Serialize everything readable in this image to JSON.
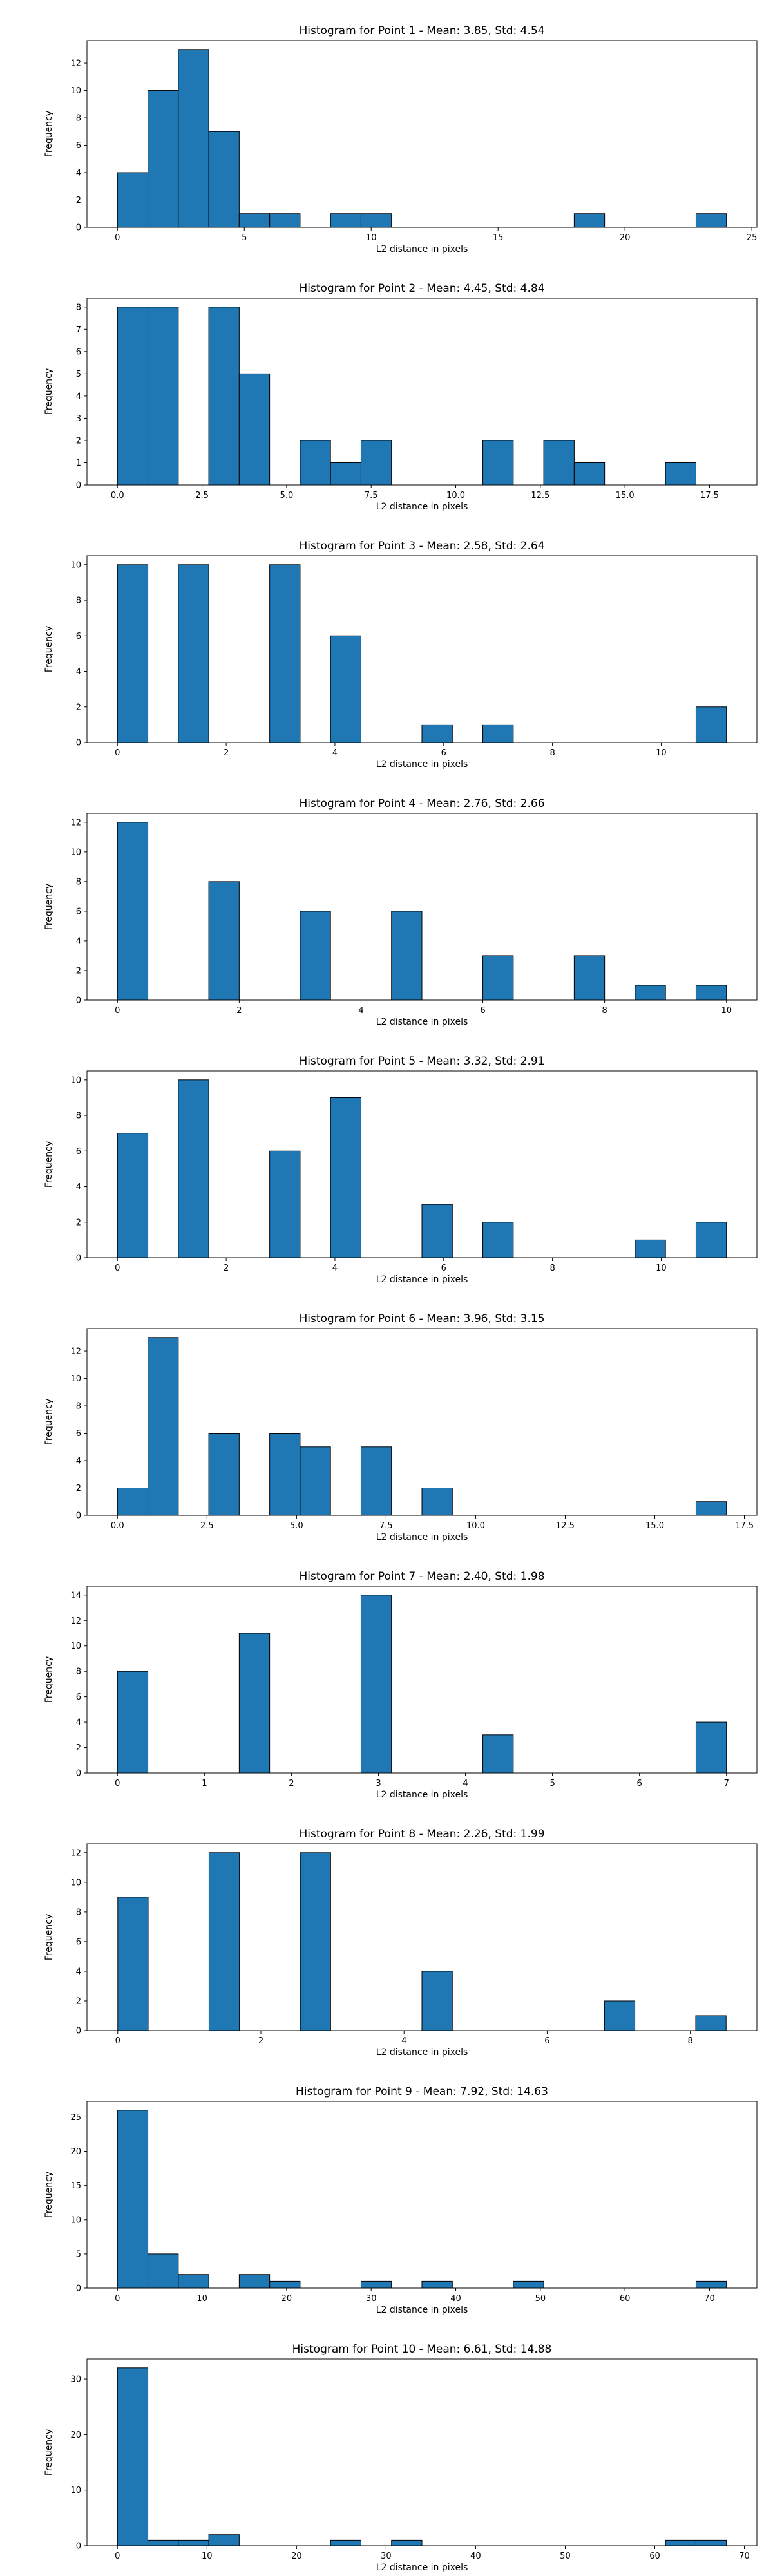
{
  "chart_data": [
    {
      "type": "bar",
      "title": "Histogram for Point 1 - Mean: 3.85, Std: 4.54",
      "xlabel": "L2 distance in pixels",
      "ylabel": "Frequency",
      "xlim": [
        -1.2,
        25.2
      ],
      "ylim": [
        0,
        13.65
      ],
      "xticks": [
        0,
        5,
        10,
        15,
        20,
        25
      ],
      "xtick_labels": [
        "0",
        "5",
        "10",
        "15",
        "20",
        "25"
      ],
      "yticks": [
        0,
        2,
        4,
        6,
        8,
        10,
        12
      ],
      "ytick_labels": [
        "0",
        "2",
        "4",
        "6",
        "8",
        "10",
        "12"
      ],
      "bin_edges": [
        0.0,
        1.2,
        2.4,
        3.6,
        4.8,
        6.0,
        7.2,
        8.4,
        9.6,
        10.8,
        12.0,
        13.2,
        14.4,
        15.6,
        16.8,
        18.0,
        19.2,
        20.4,
        21.6,
        22.8,
        24.0
      ],
      "values": [
        4,
        10,
        13,
        7,
        1,
        1,
        0,
        1,
        1,
        0,
        0,
        0,
        0,
        0,
        0,
        1,
        0,
        0,
        0,
        1
      ],
      "color": "#1f77b4"
    },
    {
      "type": "bar",
      "title": "Histogram for Point 2 - Mean: 4.45, Std: 4.84",
      "xlabel": "L2 distance in pixels",
      "ylabel": "Frequency",
      "xlim": [
        -0.9,
        18.9
      ],
      "ylim": [
        0,
        8.4
      ],
      "xticks": [
        0,
        2.5,
        5,
        7.5,
        10,
        12.5,
        15,
        17.5
      ],
      "xtick_labels": [
        "0.0",
        "2.5",
        "5.0",
        "7.5",
        "10.0",
        "12.5",
        "15.0",
        "17.5"
      ],
      "yticks": [
        0,
        1,
        2,
        3,
        4,
        5,
        6,
        7,
        8
      ],
      "ytick_labels": [
        "0",
        "1",
        "2",
        "3",
        "4",
        "5",
        "6",
        "7",
        "8"
      ],
      "bin_edges": [
        0.0,
        0.9,
        1.8,
        2.7,
        3.6,
        4.5,
        5.4,
        6.3,
        7.2,
        8.1,
        9.0,
        9.9,
        10.8,
        11.7,
        12.6,
        13.5,
        14.4,
        15.3,
        16.2,
        17.1,
        18.0
      ],
      "values": [
        8,
        8,
        0,
        8,
        5,
        0,
        2,
        1,
        2,
        0,
        0,
        0,
        2,
        0,
        2,
        1,
        0,
        0,
        1,
        0
      ],
      "color": "#1f77b4"
    },
    {
      "type": "bar",
      "title": "Histogram for Point 3 - Mean: 2.58, Std: 2.64",
      "xlabel": "L2 distance in pixels",
      "ylabel": "Frequency",
      "xlim": [
        -0.56,
        11.76
      ],
      "ylim": [
        0,
        10.5
      ],
      "xticks": [
        0,
        2,
        4,
        6,
        8,
        10
      ],
      "xtick_labels": [
        "0",
        "2",
        "4",
        "6",
        "8",
        "10"
      ],
      "yticks": [
        0,
        2,
        4,
        6,
        8,
        10
      ],
      "ytick_labels": [
        "0",
        "2",
        "4",
        "6",
        "8",
        "10"
      ],
      "bin_edges": [
        0.0,
        0.56,
        1.12,
        1.68,
        2.24,
        2.8,
        3.36,
        3.92,
        4.48,
        5.04,
        5.6,
        6.16,
        6.72,
        7.28,
        7.84,
        8.4,
        8.96,
        9.52,
        10.08,
        10.64,
        11.2
      ],
      "values": [
        10,
        0,
        10,
        0,
        0,
        10,
        0,
        6,
        0,
        0,
        1,
        0,
        1,
        0,
        0,
        0,
        0,
        0,
        0,
        2
      ],
      "color": "#1f77b4"
    },
    {
      "type": "bar",
      "title": "Histogram for Point 4 - Mean: 2.76, Std: 2.66",
      "xlabel": "L2 distance in pixels",
      "ylabel": "Frequency",
      "xlim": [
        -0.5,
        10.5
      ],
      "ylim": [
        0,
        12.6
      ],
      "xticks": [
        0,
        2,
        4,
        6,
        8,
        10
      ],
      "xtick_labels": [
        "0",
        "2",
        "4",
        "6",
        "8",
        "10"
      ],
      "yticks": [
        0,
        2,
        4,
        6,
        8,
        10,
        12
      ],
      "ytick_labels": [
        "0",
        "2",
        "4",
        "6",
        "8",
        "10",
        "12"
      ],
      "bin_edges": [
        0.0,
        0.5,
        1.0,
        1.5,
        2.0,
        2.5,
        3.0,
        3.5,
        4.0,
        4.5,
        5.0,
        5.5,
        6.0,
        6.5,
        7.0,
        7.5,
        8.0,
        8.5,
        9.0,
        9.5,
        10.0
      ],
      "values": [
        12,
        0,
        0,
        8,
        0,
        0,
        6,
        0,
        0,
        6,
        0,
        0,
        3,
        0,
        0,
        3,
        0,
        1,
        0,
        1
      ],
      "color": "#1f77b4"
    },
    {
      "type": "bar",
      "title": "Histogram for Point 5 - Mean: 3.32, Std: 2.91",
      "xlabel": "L2 distance in pixels",
      "ylabel": "Frequency",
      "xlim": [
        -0.56,
        11.76
      ],
      "ylim": [
        0,
        10.5
      ],
      "xticks": [
        0,
        2,
        4,
        6,
        8,
        10
      ],
      "xtick_labels": [
        "0",
        "2",
        "4",
        "6",
        "8",
        "10"
      ],
      "yticks": [
        0,
        2,
        4,
        6,
        8,
        10
      ],
      "ytick_labels": [
        "0",
        "2",
        "4",
        "6",
        "8",
        "10"
      ],
      "bin_edges": [
        0.0,
        0.56,
        1.12,
        1.68,
        2.24,
        2.8,
        3.36,
        3.92,
        4.48,
        5.04,
        5.6,
        6.16,
        6.72,
        7.28,
        7.84,
        8.4,
        8.96,
        9.52,
        10.08,
        10.64,
        11.2
      ],
      "values": [
        7,
        0,
        10,
        0,
        0,
        6,
        0,
        9,
        0,
        0,
        3,
        0,
        2,
        0,
        0,
        0,
        0,
        1,
        0,
        2
      ],
      "color": "#1f77b4"
    },
    {
      "type": "bar",
      "title": "Histogram for Point 6 - Mean: 3.96, Std: 3.15",
      "xlabel": "L2 distance in pixels",
      "ylabel": "Frequency",
      "xlim": [
        -0.85,
        17.85
      ],
      "ylim": [
        0,
        13.65
      ],
      "xticks": [
        0,
        2.5,
        5,
        7.5,
        10,
        12.5,
        15,
        17.5
      ],
      "xtick_labels": [
        "0.0",
        "2.5",
        "5.0",
        "7.5",
        "10.0",
        "12.5",
        "15.0",
        "17.5"
      ],
      "yticks": [
        0,
        2,
        4,
        6,
        8,
        10,
        12
      ],
      "ytick_labels": [
        "0",
        "2",
        "4",
        "6",
        "8",
        "10",
        "12"
      ],
      "bin_edges": [
        0.0,
        0.85,
        1.7,
        2.55,
        3.4,
        4.25,
        5.1,
        5.95,
        6.8,
        7.65,
        8.5,
        9.35,
        10.2,
        11.05,
        11.9,
        12.75,
        13.6,
        14.45,
        15.3,
        16.15,
        17.0
      ],
      "values": [
        2,
        13,
        0,
        6,
        0,
        6,
        5,
        0,
        5,
        0,
        2,
        0,
        0,
        0,
        0,
        0,
        0,
        0,
        0,
        1
      ],
      "color": "#1f77b4"
    },
    {
      "type": "bar",
      "title": "Histogram for Point 7 - Mean: 2.40, Std: 1.98",
      "xlabel": "L2 distance in pixels",
      "ylabel": "Frequency",
      "xlim": [
        -0.35,
        7.35
      ],
      "ylim": [
        0,
        14.7
      ],
      "xticks": [
        0,
        1,
        2,
        3,
        4,
        5,
        6,
        7
      ],
      "xtick_labels": [
        "0",
        "1",
        "2",
        "3",
        "4",
        "5",
        "6",
        "7"
      ],
      "yticks": [
        0,
        2,
        4,
        6,
        8,
        10,
        12,
        14
      ],
      "ytick_labels": [
        "0",
        "2",
        "4",
        "6",
        "8",
        "10",
        "12",
        "14"
      ],
      "bin_edges": [
        0.0,
        0.35,
        0.7,
        1.05,
        1.4,
        1.75,
        2.1,
        2.45,
        2.8,
        3.15,
        3.5,
        3.85,
        4.2,
        4.55,
        4.9,
        5.25,
        5.6,
        5.95,
        6.3,
        6.65,
        7.0
      ],
      "values": [
        8,
        0,
        0,
        0,
        11,
        0,
        0,
        0,
        14,
        0,
        0,
        0,
        3,
        0,
        0,
        0,
        0,
        0,
        0,
        4
      ],
      "color": "#1f77b4"
    },
    {
      "type": "bar",
      "title": "Histogram for Point 8 - Mean: 2.26, Std: 1.99",
      "xlabel": "L2 distance in pixels",
      "ylabel": "Frequency",
      "xlim": [
        -0.43,
        8.93
      ],
      "ylim": [
        0,
        12.6
      ],
      "xticks": [
        0,
        2,
        4,
        6,
        8
      ],
      "xtick_labels": [
        "0",
        "2",
        "4",
        "6",
        "8"
      ],
      "yticks": [
        0,
        2,
        4,
        6,
        8,
        10,
        12
      ],
      "ytick_labels": [
        "0",
        "2",
        "4",
        "6",
        "8",
        "10",
        "12"
      ],
      "bin_edges": [
        0.0,
        0.425,
        0.85,
        1.275,
        1.7,
        2.125,
        2.55,
        2.975,
        3.4,
        3.825,
        4.25,
        4.675,
        5.1,
        5.525,
        5.95,
        6.375,
        6.8,
        7.225,
        7.65,
        8.075,
        8.5
      ],
      "values": [
        9,
        0,
        0,
        12,
        0,
        0,
        12,
        0,
        0,
        0,
        4,
        0,
        0,
        0,
        0,
        0,
        2,
        0,
        0,
        1
      ],
      "color": "#1f77b4"
    },
    {
      "type": "bar",
      "title": "Histogram for Point 9 - Mean: 7.92, Std: 14.63",
      "xlabel": "L2 distance in pixels",
      "ylabel": "Frequency",
      "xlim": [
        -3.6,
        75.6
      ],
      "ylim": [
        0,
        27.3
      ],
      "xticks": [
        0,
        10,
        20,
        30,
        40,
        50,
        60,
        70
      ],
      "xtick_labels": [
        "0",
        "10",
        "20",
        "30",
        "40",
        "50",
        "60",
        "70"
      ],
      "yticks": [
        0,
        5,
        10,
        15,
        20,
        25
      ],
      "ytick_labels": [
        "0",
        "5",
        "10",
        "15",
        "20",
        "25"
      ],
      "bin_edges": [
        0.0,
        3.6,
        7.2,
        10.8,
        14.4,
        18.0,
        21.6,
        25.2,
        28.8,
        32.4,
        36.0,
        39.6,
        43.2,
        46.8,
        50.4,
        54.0,
        57.6,
        61.2,
        64.8,
        68.4,
        72.0
      ],
      "values": [
        26,
        5,
        2,
        0,
        2,
        1,
        0,
        0,
        1,
        0,
        1,
        0,
        0,
        1,
        0,
        0,
        0,
        0,
        0,
        1
      ],
      "color": "#1f77b4"
    },
    {
      "type": "bar",
      "title": "Histogram for Point 10 - Mean: 6.61, Std: 14.88",
      "xlabel": "L2 distance in pixels",
      "ylabel": "Frequency",
      "xlim": [
        -3.4,
        71.4
      ],
      "ylim": [
        0,
        33.6
      ],
      "xticks": [
        0,
        10,
        20,
        30,
        40,
        50,
        60,
        70
      ],
      "xtick_labels": [
        "0",
        "10",
        "20",
        "30",
        "40",
        "50",
        "60",
        "70"
      ],
      "yticks": [
        0,
        10,
        20,
        30
      ],
      "ytick_labels": [
        "0",
        "10",
        "20",
        "30"
      ],
      "bin_edges": [
        0.0,
        3.4,
        6.8,
        10.2,
        13.6,
        17.0,
        20.4,
        23.8,
        27.2,
        30.6,
        34.0,
        37.4,
        40.8,
        44.2,
        47.6,
        51.0,
        54.4,
        57.8,
        61.2,
        64.6,
        68.0
      ],
      "values": [
        32,
        1,
        1,
        2,
        0,
        0,
        0,
        1,
        0,
        1,
        0,
        0,
        0,
        0,
        0,
        0,
        0,
        0,
        1,
        1
      ],
      "color": "#1f77b4"
    }
  ]
}
